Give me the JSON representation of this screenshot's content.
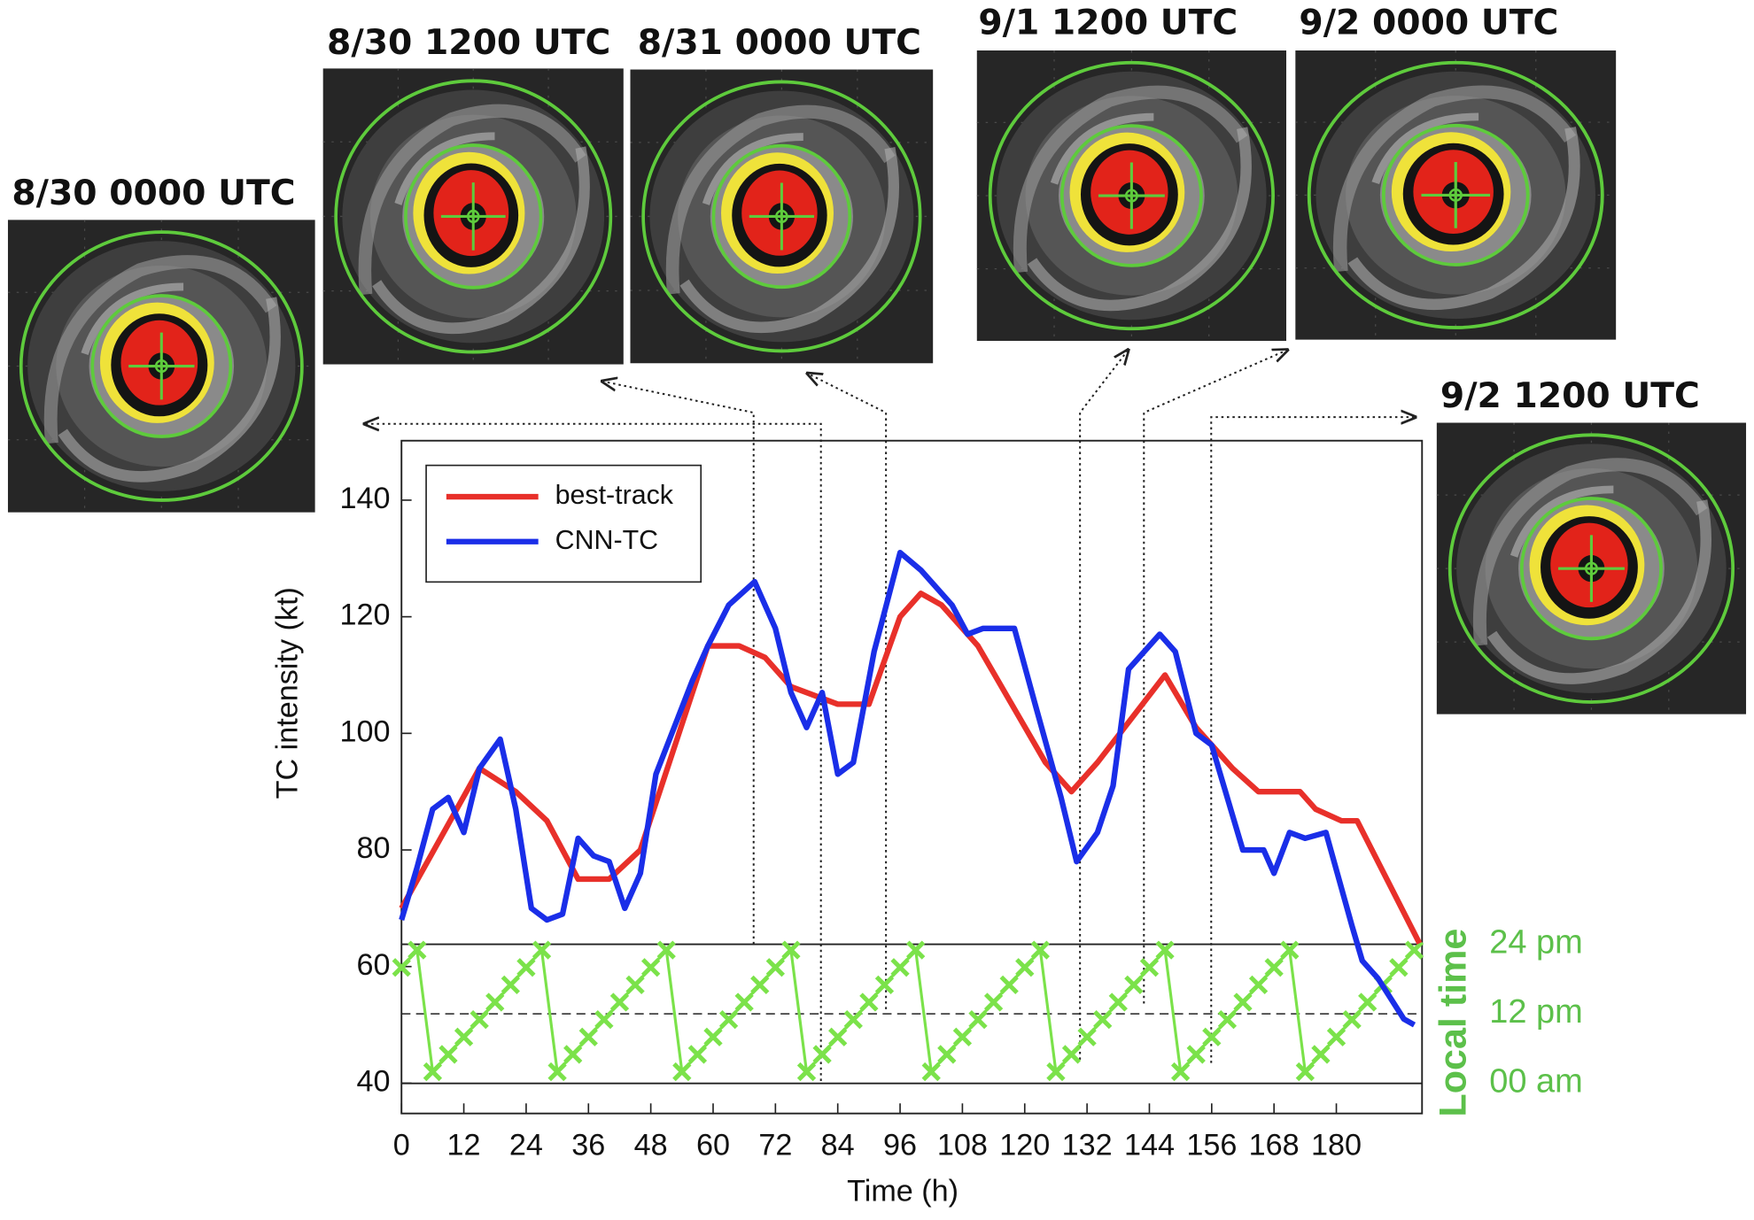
{
  "chart_data": {
    "type": "line",
    "xlabel": "Time (h)",
    "ylabel": "TC intensity (kt)",
    "y2label": "Local time",
    "xlim": [
      0,
      196.5
    ],
    "ylim": [
      34.8,
      150.2
    ],
    "y2lim": [
      -5.2,
      110.9
    ],
    "xticks": [
      0,
      12,
      24,
      36,
      48,
      60,
      72,
      84,
      96,
      108,
      120,
      132,
      144,
      156,
      168,
      180
    ],
    "yticks": [
      40,
      60,
      80,
      100,
      120,
      140
    ],
    "y2ticks": [
      {
        "value": 0,
        "label": "00 am"
      },
      {
        "value": 12,
        "label": "12 pm"
      },
      {
        "value": 24,
        "label": "24 pm"
      }
    ],
    "legend": "upper left",
    "y2color": "#5cc04a",
    "annotations": [
      "8/30 0000 UTC",
      "8/30 1200 UTC",
      "8/31 0000 UTC",
      "9/1 1200 UTC",
      "9/2 0000 UTC",
      "9/2 1200 UTC"
    ],
    "series": [
      {
        "name": "best-track",
        "color": "#e8302a",
        "x": [
          0,
          15,
          22,
          28,
          34,
          40,
          46,
          59,
          65,
          70,
          75,
          84,
          90,
          96,
          100,
          104,
          111,
          124,
          129,
          134,
          147,
          153,
          160,
          165,
          173,
          176,
          181,
          184,
          196
        ],
        "values": [
          70,
          94,
          90,
          85,
          75,
          75,
          80,
          115,
          115,
          113,
          108,
          105,
          105,
          120,
          124,
          122,
          115,
          95,
          90,
          95,
          110,
          101,
          94,
          90,
          90,
          87,
          85,
          85,
          64
        ]
      },
      {
        "name": "CNN-TC",
        "color": "#1a2ee8",
        "x": [
          0,
          3,
          6,
          9,
          12,
          15,
          19,
          22,
          25,
          28,
          31,
          34,
          37,
          40,
          43,
          46,
          49,
          56,
          59,
          63,
          68,
          72,
          75,
          78,
          81,
          84,
          87,
          91,
          96,
          100,
          106,
          109,
          112,
          118,
          122,
          127,
          130,
          134,
          137,
          140,
          143,
          146,
          149,
          153,
          156,
          162,
          166,
          168,
          171,
          174,
          178,
          183,
          185,
          188,
          193,
          195
        ],
        "values": [
          68,
          77,
          87,
          89,
          83,
          94,
          99,
          87,
          70,
          68,
          69,
          82,
          79,
          78,
          70,
          76,
          93,
          109,
          115,
          122,
          126,
          118,
          107,
          101,
          107,
          93,
          95,
          114,
          131,
          128,
          122,
          117,
          118,
          118,
          105,
          89,
          78,
          83,
          91,
          111,
          114,
          117,
          114,
          100,
          98,
          80,
          80,
          76,
          83,
          82,
          83,
          67,
          61,
          58,
          51,
          50
        ]
      },
      {
        "color": "#7be24a",
        "axis": "y2",
        "marker": "x",
        "x": [
          0,
          3,
          6,
          9,
          12,
          15,
          18,
          21,
          24,
          27,
          30,
          33,
          36,
          39,
          42,
          45,
          48,
          51,
          54,
          57,
          60,
          63,
          66,
          69,
          72,
          75,
          78,
          81,
          84,
          87,
          90,
          93,
          96,
          99,
          102,
          105,
          108,
          111,
          114,
          117,
          120,
          123,
          126,
          129,
          132,
          135,
          138,
          141,
          144,
          147,
          150,
          153,
          156,
          159,
          162,
          165,
          168,
          171,
          174,
          177,
          180,
          183,
          186,
          189,
          192,
          195
        ],
        "values": [
          20,
          23,
          2,
          5,
          8,
          11,
          14,
          17,
          20,
          23,
          2,
          5,
          8,
          11,
          14,
          17,
          20,
          23,
          2,
          5,
          8,
          11,
          14,
          17,
          20,
          23,
          2,
          5,
          8,
          11,
          14,
          17,
          20,
          23,
          2,
          5,
          8,
          11,
          14,
          17,
          20,
          23,
          2,
          5,
          8,
          11,
          14,
          17,
          20,
          23,
          2,
          5,
          8,
          11,
          14,
          17,
          20,
          23,
          2,
          5,
          8,
          11,
          14,
          17,
          20,
          23
        ]
      }
    ]
  }
}
